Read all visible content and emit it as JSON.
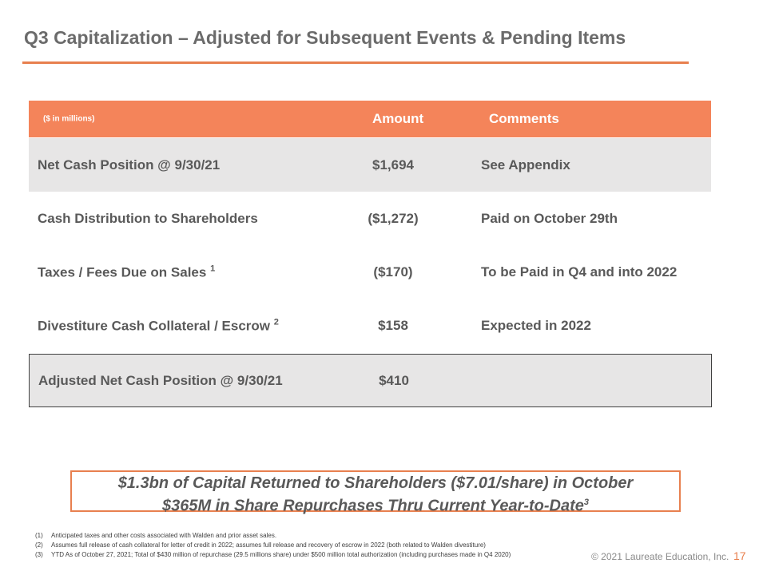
{
  "header": {
    "title": "Q3 Capitalization – Adjusted for Subsequent Events & Pending Items"
  },
  "table": {
    "columns": [
      "($ in millions)",
      "Amount",
      "Comments"
    ],
    "rows": [
      {
        "label": "Net Cash Position @ 9/30/21",
        "amount": "$1,694",
        "comment": "See Appendix"
      },
      {
        "label": "Cash Distribution to Shareholders",
        "amount": "($1,272)",
        "comment": "Paid on October 29th"
      },
      {
        "label": "Taxes / Fees Due on Sales",
        "note": "1",
        "amount": "($170)",
        "comment": "To be Paid in Q4 and into 2022"
      },
      {
        "label": "Divestiture Cash Collateral / Escrow",
        "note": "2",
        "amount": "$158",
        "comment": "Expected in 2022"
      },
      {
        "label": "Adjusted Net Cash Position @ 9/30/21",
        "amount": "$410"
      }
    ]
  },
  "callout": {
    "line1": "$1.3bn of Capital Returned to Shareholders ($7.01/share) in October",
    "line2": "$365M in Share Repurchases Thru Current Year-to-Date",
    "note": "3"
  },
  "footnotes": [
    {
      "marker": "(1)",
      "text": "Anticipated taxes and other costs associated with Walden and prior asset sales."
    },
    {
      "marker": "(2)",
      "text": "Assumes full release of cash collateral for letter of credit in 2022; assumes full release and recovery of escrow in 2022 (both related to Walden divestiture)"
    },
    {
      "marker": "(3)",
      "text": "YTD As of October 27, 2021; Total of $430 million of repurchase (29.5 millions share) under $500 million total authorization (including purchases made in Q4 2020)"
    }
  ],
  "footer": {
    "copyright": "© 2021 Laureate Education, Inc.",
    "page": "17"
  }
}
